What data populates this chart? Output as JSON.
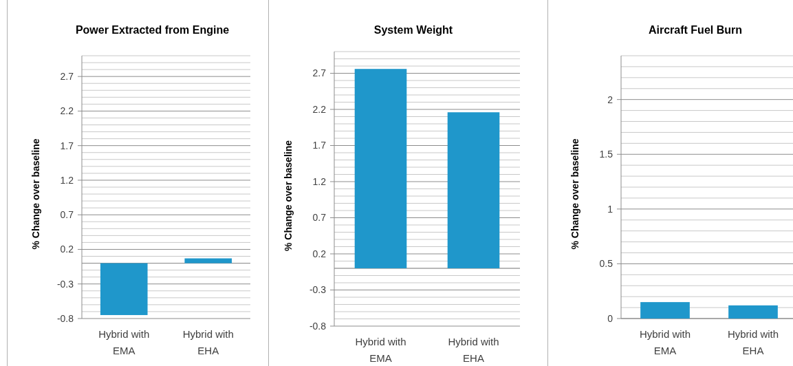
{
  "chart_data": [
    {
      "type": "bar",
      "title": "Power Extracted from Engine",
      "ylabel": "% Change over baseline",
      "categories": [
        "Hybrid with EMA",
        "Hybrid with EHA"
      ],
      "values": [
        -0.75,
        0.07
      ],
      "color": "#1f97cb",
      "ylim": [
        -0.8,
        3.0
      ],
      "grid": "y",
      "yticks": [
        -0.8,
        {
          "value": -0.7,
          "label": null
        },
        {
          "value": -0.6,
          "label": null
        },
        {
          "value": -0.5,
          "label": null
        },
        {
          "value": -0.4,
          "label": null
        },
        -0.3,
        {
          "value": -0.2,
          "label": null
        },
        {
          "value": -0.1,
          "label": null
        },
        {
          "value": 0,
          "label": null
        },
        {
          "value": 0.1,
          "label": null
        },
        0.2,
        {
          "value": 0.3,
          "label": null
        },
        {
          "value": 0.4,
          "label": null
        },
        {
          "value": 0.5,
          "label": null
        },
        {
          "value": 0.6,
          "label": null
        },
        0.7,
        {
          "value": 0.8,
          "label": null
        },
        {
          "value": 0.9,
          "label": null
        },
        {
          "value": 1.0,
          "label": null
        },
        {
          "value": 1.1,
          "label": null
        },
        1.2,
        {
          "value": 1.3,
          "label": null
        },
        {
          "value": 1.4,
          "label": null
        },
        {
          "value": 1.5,
          "label": null
        },
        {
          "value": 1.6,
          "label": null
        },
        1.7,
        {
          "value": 1.8,
          "label": null
        },
        {
          "value": 1.9,
          "label": null
        },
        {
          "value": 2.0,
          "label": null
        },
        {
          "value": 2.1,
          "label": null
        },
        2.2,
        {
          "value": 2.3,
          "label": null
        },
        {
          "value": 2.4,
          "label": null
        },
        {
          "value": 2.5,
          "label": null
        },
        {
          "value": 2.6,
          "label": null
        },
        2.7,
        {
          "value": 2.8,
          "label": null
        },
        {
          "value": 2.9,
          "label": null
        },
        {
          "value": 3.0,
          "label": null
        }
      ]
    },
    {
      "type": "bar",
      "title": "System Weight",
      "ylabel": "% Change over baseline",
      "categories": [
        "Hybrid with EMA",
        "Hybrid with EHA"
      ],
      "values": [
        2.76,
        2.16
      ],
      "color": "#1f97cb",
      "ylim": [
        -0.8,
        3.0
      ],
      "grid": "y",
      "yticks": [
        -0.8,
        {
          "value": -0.7,
          "label": null
        },
        {
          "value": -0.6,
          "label": null
        },
        {
          "value": -0.5,
          "label": null
        },
        {
          "value": -0.4,
          "label": null
        },
        -0.3,
        {
          "value": -0.2,
          "label": null
        },
        {
          "value": -0.1,
          "label": null
        },
        {
          "value": 0,
          "label": null
        },
        {
          "value": 0.1,
          "label": null
        },
        0.2,
        {
          "value": 0.3,
          "label": null
        },
        {
          "value": 0.4,
          "label": null
        },
        {
          "value": 0.5,
          "label": null
        },
        {
          "value": 0.6,
          "label": null
        },
        0.7,
        {
          "value": 0.8,
          "label": null
        },
        {
          "value": 0.9,
          "label": null
        },
        {
          "value": 1.0,
          "label": null
        },
        {
          "value": 1.1,
          "label": null
        },
        1.2,
        {
          "value": 1.3,
          "label": null
        },
        {
          "value": 1.4,
          "label": null
        },
        {
          "value": 1.5,
          "label": null
        },
        {
          "value": 1.6,
          "label": null
        },
        1.7,
        {
          "value": 1.8,
          "label": null
        },
        {
          "value": 1.9,
          "label": null
        },
        {
          "value": 2.0,
          "label": null
        },
        {
          "value": 2.1,
          "label": null
        },
        2.2,
        {
          "value": 2.3,
          "label": null
        },
        {
          "value": 2.4,
          "label": null
        },
        {
          "value": 2.5,
          "label": null
        },
        {
          "value": 2.6,
          "label": null
        },
        2.7,
        {
          "value": 2.8,
          "label": null
        },
        {
          "value": 2.9,
          "label": null
        },
        {
          "value": 3.0,
          "label": null
        }
      ]
    },
    {
      "type": "bar",
      "title": "Aircraft Fuel Burn",
      "ylabel": "% Change over baseline",
      "categories": [
        "Hybrid with EMA",
        "Hybrid with EHA"
      ],
      "values": [
        0.15,
        0.12
      ],
      "color": "#1f97cb",
      "ylim": [
        0,
        2.4
      ],
      "grid": "y",
      "yticks": [
        0,
        {
          "value": 0.1,
          "label": null
        },
        {
          "value": 0.2,
          "label": null
        },
        {
          "value": 0.3,
          "label": null
        },
        {
          "value": 0.4,
          "label": null
        },
        0.5,
        {
          "value": 0.6,
          "label": null
        },
        {
          "value": 0.7,
          "label": null
        },
        {
          "value": 0.8,
          "label": null
        },
        {
          "value": 0.9,
          "label": null
        },
        1,
        {
          "value": 1.1,
          "label": null
        },
        {
          "value": 1.2,
          "label": null
        },
        {
          "value": 1.3,
          "label": null
        },
        {
          "value": 1.4,
          "label": null
        },
        1.5,
        {
          "value": 1.6,
          "label": null
        },
        {
          "value": 1.7,
          "label": null
        },
        {
          "value": 1.8,
          "label": null
        },
        {
          "value": 1.9,
          "label": null
        },
        2,
        {
          "value": 2.1,
          "label": null
        },
        {
          "value": 2.2,
          "label": null
        },
        {
          "value": 2.3,
          "label": null
        },
        {
          "value": 2.4,
          "label": null
        }
      ]
    }
  ]
}
